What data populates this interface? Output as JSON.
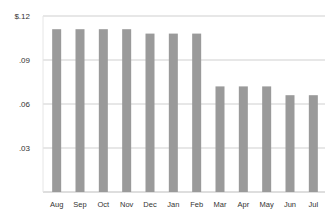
{
  "chart_data": {
    "type": "bar",
    "categories": [
      "Aug",
      "Sep",
      "Oct",
      "Nov",
      "Dec",
      "Jan",
      "Feb",
      "Mar",
      "Apr",
      "May",
      "Jun",
      "Jul"
    ],
    "values": [
      0.111,
      0.111,
      0.111,
      0.111,
      0.108,
      0.108,
      0.108,
      0.072,
      0.072,
      0.072,
      0.066,
      0.066
    ],
    "color": "#9a9a9a",
    "ylim": [
      0,
      0.12
    ],
    "yticks": [
      {
        "value": 0.03,
        "label": ".03"
      },
      {
        "value": 0.06,
        "label": ".06"
      },
      {
        "value": 0.09,
        "label": ".09"
      },
      {
        "value": 0.12,
        "label": "$.12"
      }
    ],
    "grid": true
  }
}
